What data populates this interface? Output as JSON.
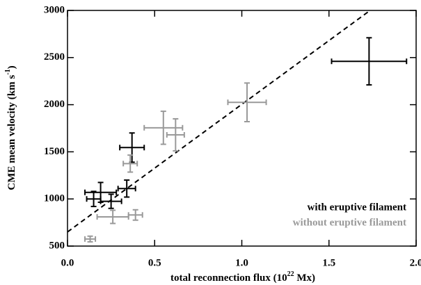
{
  "chart_data": {
    "type": "scatter",
    "xlabel": [
      "total reconnection flux (10",
      "22",
      " Mx)"
    ],
    "ylabel": [
      "CME mean velocity (km s",
      "-1",
      ")"
    ],
    "xlim": [
      0,
      2.0
    ],
    "ylim": [
      500,
      3000
    ],
    "xticks": [
      {
        "value": 0,
        "label": "0.0"
      },
      0.5,
      {
        "value": 1,
        "label": "1.0"
      },
      1.5,
      {
        "value": 2,
        "label": "2.0"
      }
    ],
    "yticks": [
      500,
      1000,
      1500,
      2000,
      2500,
      3000
    ],
    "legend": "bottom-right",
    "series": [
      {
        "name": "with eruptive filament",
        "color": "#000000",
        "x": [
          1.73,
          0.37,
          0.19,
          0.34,
          0.15,
          0.25
        ],
        "y": [
          2460,
          1545,
          1070,
          1110,
          1000,
          975
        ],
        "xerr": [
          0.215,
          0.07,
          0.09,
          0.05,
          0.04,
          0.06
        ],
        "yerr": [
          250,
          155,
          105,
          90,
          80,
          75
        ]
      },
      {
        "name": "without eruptive filament",
        "color": "#999999",
        "x": [
          1.03,
          0.55,
          0.62,
          0.36,
          0.26,
          0.39,
          0.13
        ],
        "y": [
          2025,
          1755,
          1680,
          1375,
          810,
          830,
          575
        ],
        "xerr": [
          0.11,
          0.11,
          0.05,
          0.04,
          0.09,
          0.04,
          0.03
        ],
        "yerr": [
          205,
          175,
          170,
          90,
          70,
          55,
          30
        ]
      }
    ],
    "fit_line": {
      "x": [
        0,
        1.736
      ],
      "y": [
        650,
        3000
      ],
      "style": "dashed"
    }
  }
}
